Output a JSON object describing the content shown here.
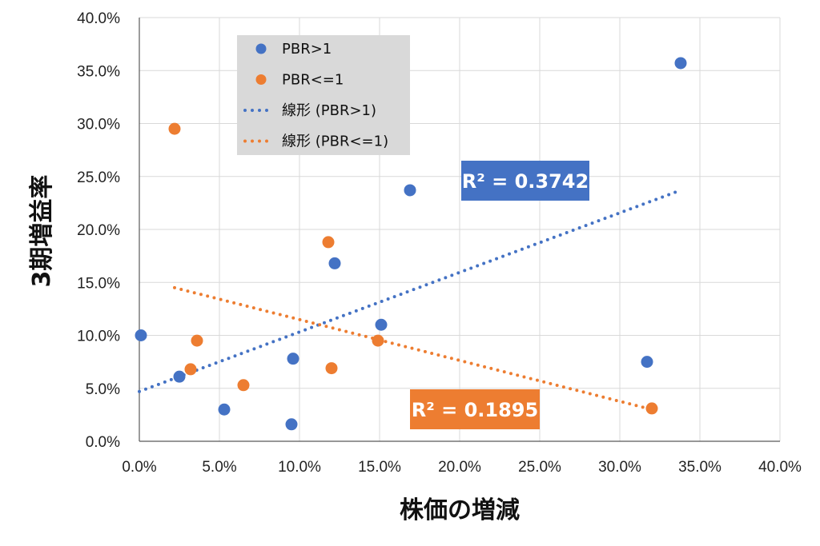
{
  "chart_data": {
    "type": "scatter",
    "title": "",
    "xlabel": "株価の増減",
    "ylabel": "3期増益率",
    "xlim": [
      0,
      0.4
    ],
    "ylim": [
      0,
      0.4
    ],
    "x_ticks": [
      "0.0%",
      "5.0%",
      "10.0%",
      "15.0%",
      "20.0%",
      "25.0%",
      "30.0%",
      "35.0%",
      "40.0%"
    ],
    "y_ticks": [
      "0.0%",
      "5.0%",
      "10.0%",
      "15.0%",
      "20.0%",
      "25.0%",
      "30.0%",
      "35.0%",
      "40.0%"
    ],
    "grid": true,
    "legend_position": "top-left",
    "series": [
      {
        "name": "PBR>1",
        "color": "#4472C4",
        "points": [
          {
            "x": 0.001,
            "y": 0.1
          },
          {
            "x": 0.025,
            "y": 0.061
          },
          {
            "x": 0.053,
            "y": 0.03
          },
          {
            "x": 0.095,
            "y": 0.016
          },
          {
            "x": 0.096,
            "y": 0.078
          },
          {
            "x": 0.122,
            "y": 0.168
          },
          {
            "x": 0.151,
            "y": 0.11
          },
          {
            "x": 0.169,
            "y": 0.237
          },
          {
            "x": 0.317,
            "y": 0.075
          },
          {
            "x": 0.338,
            "y": 0.357
          }
        ]
      },
      {
        "name": "PBR<=1",
        "color": "#ED7D31",
        "points": [
          {
            "x": 0.022,
            "y": 0.295
          },
          {
            "x": 0.032,
            "y": 0.068
          },
          {
            "x": 0.036,
            "y": 0.095
          },
          {
            "x": 0.065,
            "y": 0.053
          },
          {
            "x": 0.118,
            "y": 0.188
          },
          {
            "x": 0.12,
            "y": 0.069
          },
          {
            "x": 0.149,
            "y": 0.095
          },
          {
            "x": 0.32,
            "y": 0.031
          }
        ]
      }
    ],
    "trendlines": [
      {
        "name": "線形 (PBR>1)",
        "color": "#4472C4",
        "x_start": 0.0,
        "y_start": 0.047,
        "x_end": 0.338,
        "y_end": 0.237,
        "r2_label": "R² = 0.3742"
      },
      {
        "name": "線形 (PBR<=1)",
        "color": "#ED7D31",
        "x_start": 0.022,
        "y_start": 0.145,
        "x_end": 0.32,
        "y_end": 0.03,
        "r2_label": "R² = 0.1895"
      }
    ]
  },
  "legend": {
    "items": [
      {
        "label": "PBR>1",
        "kind": "marker",
        "color": "#4472C4"
      },
      {
        "label": "PBR<=1",
        "kind": "marker",
        "color": "#ED7D31"
      },
      {
        "label": "線形 (PBR>1)",
        "kind": "dotted-line",
        "color": "#4472C4"
      },
      {
        "label": "線形 (PBR<=1)",
        "kind": "dotted-line",
        "color": "#ED7D31"
      }
    ]
  }
}
